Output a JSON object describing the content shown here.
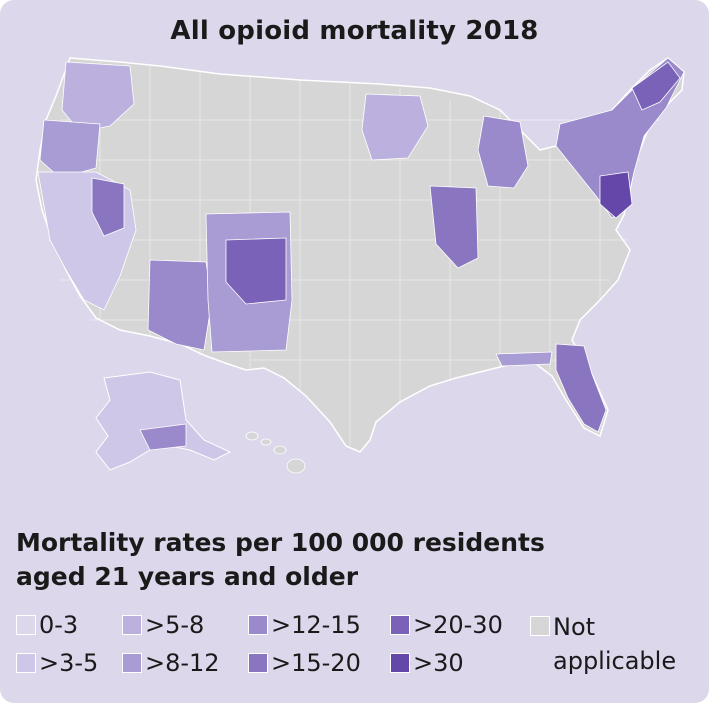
{
  "title": "All opioid mortality 2018",
  "legend": {
    "title_line1": "Mortality rates per 100 000 residents",
    "title_line2": "aged 21 years and older",
    "items": [
      {
        "label": "0-3",
        "color": "#dcd7ea"
      },
      {
        "label": ">3-5",
        "color": "#cfc7e7"
      },
      {
        "label": ">5-8",
        "color": "#bcb1de"
      },
      {
        "label": ">8-12",
        "color": "#a99bd3"
      },
      {
        "label": ">12-15",
        "color": "#9a89cb"
      },
      {
        "label": ">15-20",
        "color": "#8a75c1"
      },
      {
        "label": ">20-30",
        "color": "#7a62b8"
      },
      {
        "label": ">30",
        "color": "#6447a8"
      }
    ],
    "not_applicable": {
      "label_line1": "Not",
      "label_line2": "applicable",
      "color": "#d6d6d6"
    }
  },
  "map": {
    "base_color": "#d6d6d6",
    "border_color": "#ffffff"
  }
}
